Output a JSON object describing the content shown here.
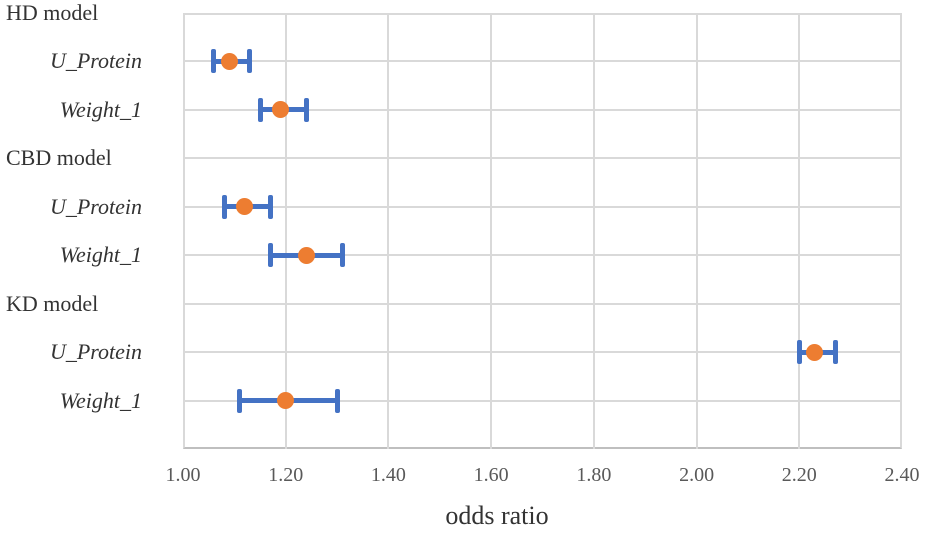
{
  "chart_data": {
    "type": "scatter",
    "subtype": "forest-plot-with-error-bars",
    "title": "",
    "xlabel": "odds ratio",
    "ylabel": "",
    "xlim": [
      1.0,
      2.4
    ],
    "xticks": [
      "1.00",
      "1.20",
      "1.40",
      "1.60",
      "1.80",
      "2.00",
      "2.20",
      "2.40"
    ],
    "grid": true,
    "legend": null,
    "rows": [
      {
        "label": "HD model",
        "kind": "group"
      },
      {
        "label": "U_Protein",
        "kind": "variable",
        "odds_ratio": 1.09,
        "ci_low": 1.06,
        "ci_high": 1.13
      },
      {
        "label": "Weight_1",
        "kind": "variable",
        "odds_ratio": 1.19,
        "ci_low": 1.15,
        "ci_high": 1.24
      },
      {
        "label": "CBD model",
        "kind": "group"
      },
      {
        "label": "U_Protein",
        "kind": "variable",
        "odds_ratio": 1.12,
        "ci_low": 1.08,
        "ci_high": 1.17
      },
      {
        "label": "Weight_1",
        "kind": "variable",
        "odds_ratio": 1.24,
        "ci_low": 1.17,
        "ci_high": 1.31
      },
      {
        "label": "KD model",
        "kind": "group"
      },
      {
        "label": "U_Protein",
        "kind": "variable",
        "odds_ratio": 2.23,
        "ci_low": 2.2,
        "ci_high": 2.27
      },
      {
        "label": "Weight_1",
        "kind": "variable",
        "odds_ratio": 1.2,
        "ci_low": 1.11,
        "ci_high": 1.3
      }
    ],
    "colors": {
      "marker": "#ed7d31",
      "error_bar": "#4472c4",
      "gridline": "#d9d9d9",
      "axis_line": "#bfbfbf",
      "tick_text": "#595959",
      "label_text": "#333333"
    }
  }
}
